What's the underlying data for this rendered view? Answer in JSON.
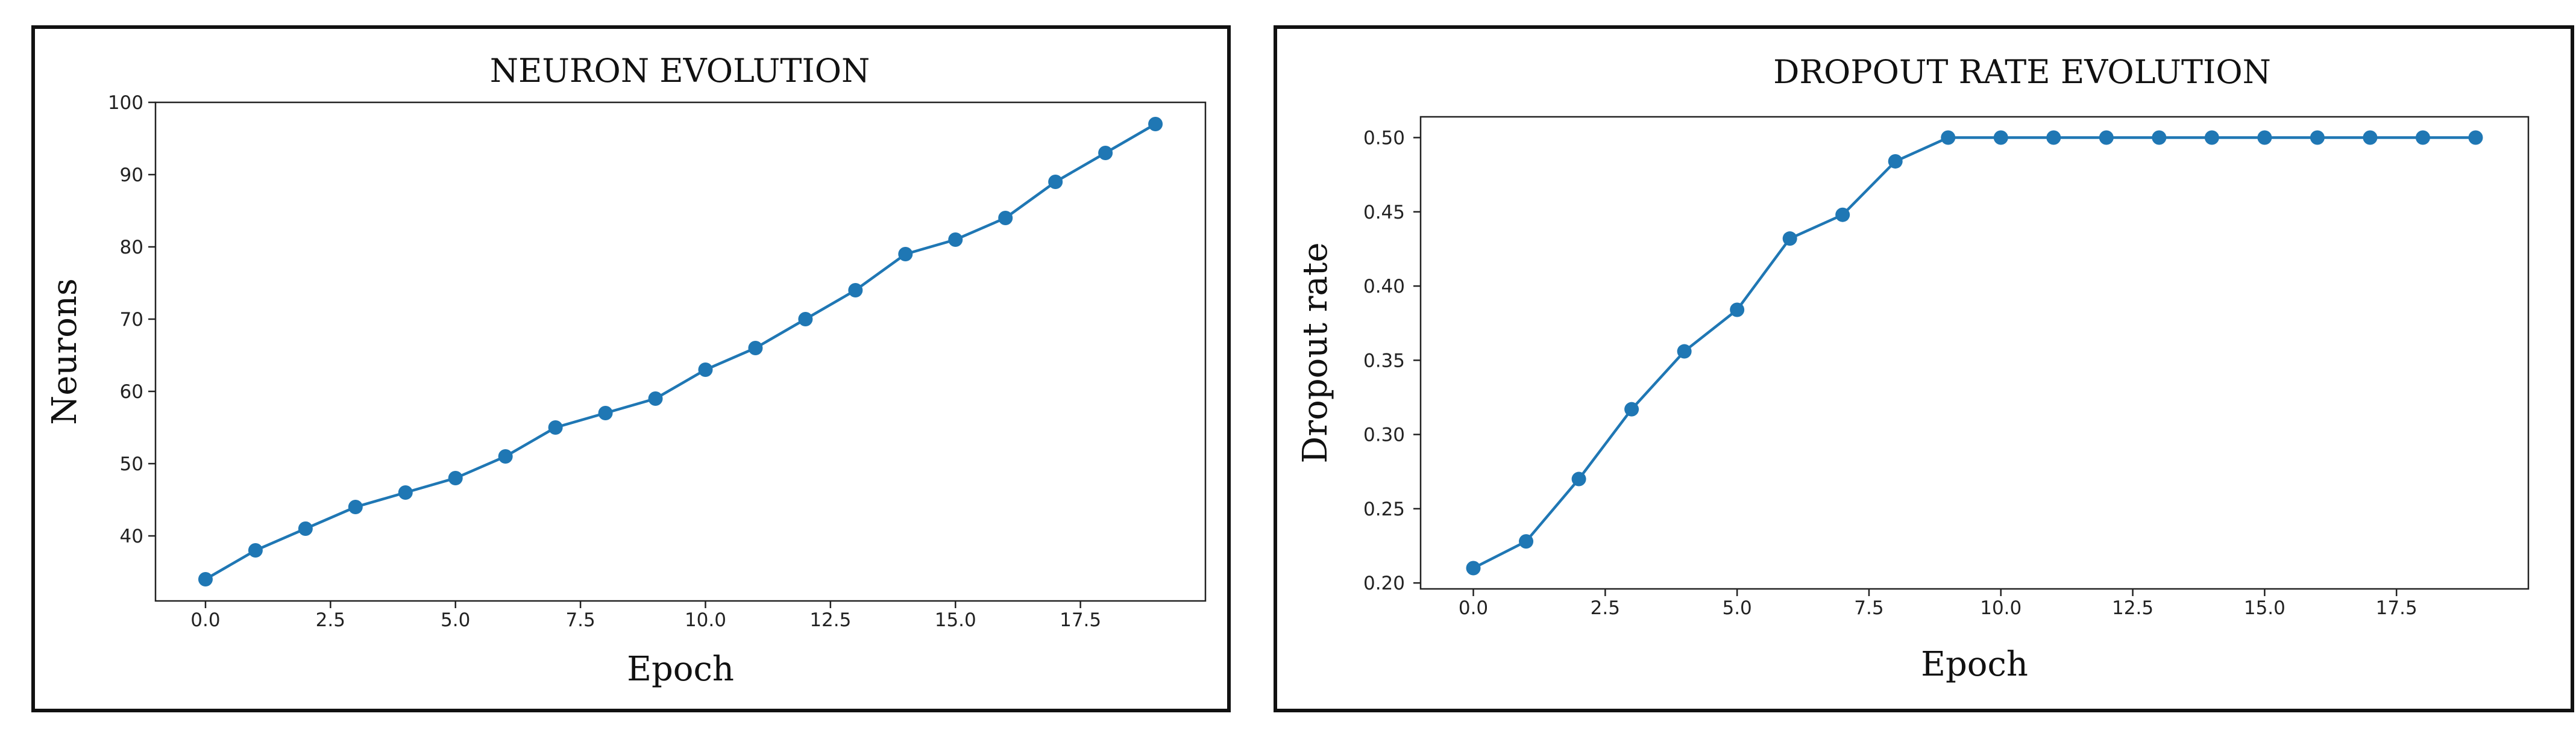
{
  "chart_data": [
    {
      "type": "line",
      "title": "NEURON EVOLUTION",
      "xlabel": "Epoch",
      "ylabel": "Neurons",
      "xlim": [
        -1,
        20
      ],
      "ylim": [
        31,
        100
      ],
      "xticks": [
        0,
        2.5,
        5,
        7.5,
        10,
        12.5,
        15,
        17.5
      ],
      "xtick_labels": [
        "0.0",
        "2.5",
        "5.0",
        "7.5",
        "10.0",
        "12.5",
        "15.0",
        "17.5"
      ],
      "yticks": [
        40,
        50,
        60,
        70,
        80,
        90,
        100
      ],
      "ytick_labels": [
        "40",
        "50",
        "60",
        "70",
        "80",
        "90",
        "100"
      ],
      "grid": false,
      "color": "#1f77b4",
      "x": [
        0,
        1,
        2,
        3,
        4,
        5,
        6,
        7,
        8,
        9,
        10,
        11,
        12,
        13,
        14,
        15,
        16,
        17,
        18,
        19
      ],
      "y": [
        34,
        38,
        41,
        44,
        46,
        48,
        51,
        55,
        57,
        59,
        63,
        66,
        70,
        74,
        79,
        81,
        84,
        89,
        93,
        97
      ]
    },
    {
      "type": "line",
      "title": "DROPOUT RATE EVOLUTION",
      "xlabel": "Epoch",
      "ylabel": "Dropout rate",
      "xlim": [
        -1,
        20
      ],
      "ylim": [
        0.196,
        0.514
      ],
      "xticks": [
        0,
        2.5,
        5,
        7.5,
        10,
        12.5,
        15,
        17.5
      ],
      "xtick_labels": [
        "0.0",
        "2.5",
        "5.0",
        "7.5",
        "10.0",
        "12.5",
        "15.0",
        "17.5"
      ],
      "yticks": [
        0.2,
        0.25,
        0.3,
        0.35,
        0.4,
        0.45,
        0.5
      ],
      "ytick_labels": [
        "0.20",
        "0.25",
        "0.30",
        "0.35",
        "0.40",
        "0.45",
        "0.50"
      ],
      "grid": false,
      "color": "#1f77b4",
      "x": [
        0,
        1,
        2,
        3,
        4,
        5,
        6,
        7,
        8,
        9,
        10,
        11,
        12,
        13,
        14,
        15,
        16,
        17,
        18,
        19
      ],
      "y": [
        0.21,
        0.228,
        0.27,
        0.317,
        0.356,
        0.384,
        0.432,
        0.448,
        0.484,
        0.5,
        0.5,
        0.5,
        0.5,
        0.5,
        0.5,
        0.5,
        0.5,
        0.5,
        0.5,
        0.5
      ]
    }
  ]
}
